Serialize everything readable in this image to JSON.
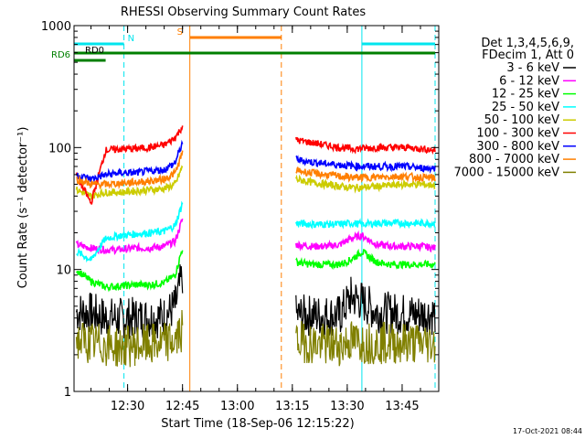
{
  "chart_data": {
    "type": "line",
    "title": "RHESSI Observing Summary Count Rates",
    "xlabel": "Start Time (18-Sep-06 12:15:22)",
    "ylabel": "Count Rate (s⁻¹ detector⁻¹)",
    "y_scale": "log",
    "ylim": [
      1,
      1000
    ],
    "xlim": [
      "12:15:22",
      "13:55"
    ],
    "x_ticks": [
      "12:30",
      "12:45",
      "13:00",
      "13:15",
      "13:30",
      "13:45"
    ],
    "y_ticks": [
      "1",
      "10",
      "100",
      "1000"
    ],
    "legend_header": [
      "Det 1,3,4,5,6,9,",
      "FDecim 1, Att 0"
    ],
    "legend_placement": "right",
    "timestamp": "17-Oct-2021 08:44",
    "gaps": [
      [
        "12:46",
        "13:14"
      ]
    ],
    "flags": [
      {
        "name": "N",
        "label": "N",
        "color": "#00e5ee",
        "intervals": [
          [
            "12:15:22",
            "12:29"
          ],
          [
            "13:34",
            "13:54"
          ]
        ]
      },
      {
        "name": "S",
        "label": "S",
        "color": "#ff7f00",
        "intervals": [
          [
            "12:47",
            "13:12"
          ]
        ]
      },
      {
        "name": "RD0",
        "label": "RD0",
        "color": "#007f00",
        "intervals": [
          [
            "12:15:22",
            "13:54"
          ]
        ]
      },
      {
        "name": "RD6",
        "label": "RD6",
        "color": "#007f00",
        "intervals": [
          [
            "12:15:22",
            "12:24"
          ]
        ]
      }
    ],
    "series": [
      {
        "name": "3 - 6 keV",
        "color": "#000000",
        "x": [
          "12:16",
          "12:20",
          "12:24",
          "12:28",
          "12:32",
          "12:36",
          "12:40",
          "12:43",
          "12:45",
          "13:16",
          "13:20",
          "13:24",
          "13:28",
          "13:31",
          "13:34",
          "13:38",
          "13:42",
          "13:46",
          "13:50",
          "13:54"
        ],
        "y": [
          4.5,
          4.4,
          4.0,
          4.0,
          4.0,
          4.0,
          4.1,
          5.0,
          9,
          4.2,
          4.2,
          4.2,
          4.2,
          6,
          5.5,
          4.5,
          4.4,
          4.3,
          4.3,
          4.3
        ]
      },
      {
        "name": "6 - 12 keV",
        "color": "#ff00ff",
        "x": [
          "12:16",
          "12:20",
          "12:24",
          "12:28",
          "12:32",
          "12:36",
          "12:40",
          "12:43",
          "12:45",
          "13:16",
          "13:20",
          "13:24",
          "13:28",
          "13:31",
          "13:34",
          "13:38",
          "13:42",
          "13:46",
          "13:50",
          "13:54"
        ],
        "y": [
          16,
          15,
          14.5,
          14.5,
          15,
          15,
          15.5,
          17,
          26,
          16,
          15.5,
          15.5,
          16,
          18,
          19,
          16,
          15.5,
          15.5,
          15.5,
          15
        ]
      },
      {
        "name": "12 - 25 keV",
        "color": "#00ff00",
        "x": [
          "12:16",
          "12:20",
          "12:24",
          "12:28",
          "12:32",
          "12:36",
          "12:40",
          "12:43",
          "12:45",
          "13:16",
          "13:20",
          "13:24",
          "13:28",
          "13:31",
          "13:34",
          "13:38",
          "13:42",
          "13:46",
          "13:50",
          "13:54"
        ],
        "y": [
          10,
          8,
          7.2,
          7.3,
          7.5,
          7.5,
          7.8,
          9,
          15,
          11.5,
          11,
          11,
          11,
          12,
          14,
          11.5,
          11,
          11,
          11,
          11
        ]
      },
      {
        "name": "25 - 50 keV",
        "color": "#00ffff",
        "x": [
          "12:16",
          "12:20",
          "12:24",
          "12:28",
          "12:32",
          "12:36",
          "12:40",
          "12:43",
          "12:45",
          "13:16",
          "13:20",
          "13:24",
          "13:28",
          "13:31",
          "13:34",
          "13:38",
          "13:42",
          "13:46",
          "13:50",
          "13:54"
        ],
        "y": [
          14,
          12,
          18,
          19,
          19.5,
          20,
          20.5,
          23,
          35,
          24,
          23.5,
          23.5,
          23.5,
          24,
          23.5,
          24,
          24,
          24,
          24,
          24
        ]
      },
      {
        "name": "50 - 100 keV",
        "color": "#cccc00",
        "x": [
          "12:16",
          "12:20",
          "12:24",
          "12:28",
          "12:32",
          "12:36",
          "12:40",
          "12:43",
          "12:45",
          "13:16",
          "13:20",
          "13:24",
          "13:28",
          "13:31",
          "13:34",
          "13:38",
          "13:42",
          "13:46",
          "13:50",
          "13:54"
        ],
        "y": [
          45,
          40,
          43,
          43,
          44,
          45,
          46,
          50,
          70,
          55,
          52,
          50,
          48,
          47,
          47,
          48,
          49,
          50,
          50,
          49
        ]
      },
      {
        "name": "100 - 300 keV",
        "color": "#ff0000",
        "x": [
          "12:16",
          "12:20",
          "12:24",
          "12:28",
          "12:32",
          "12:36",
          "12:40",
          "12:43",
          "12:45",
          "13:16",
          "13:20",
          "13:24",
          "13:28",
          "13:31",
          "13:34",
          "13:38",
          "13:42",
          "13:46",
          "13:50",
          "13:54"
        ],
        "y": [
          60,
          35,
          95,
          97,
          98,
          100,
          105,
          120,
          150,
          115,
          110,
          105,
          100,
          98,
          98,
          100,
          100,
          100,
          98,
          95
        ]
      },
      {
        "name": "300 - 800 keV",
        "color": "#0000ff",
        "x": [
          "12:16",
          "12:20",
          "12:24",
          "12:28",
          "12:32",
          "12:36",
          "12:40",
          "12:43",
          "12:45",
          "13:16",
          "13:20",
          "13:24",
          "13:28",
          "13:31",
          "13:34",
          "13:38",
          "13:42",
          "13:46",
          "13:50",
          "13:54"
        ],
        "y": [
          60,
          55,
          60,
          62,
          62,
          64,
          66,
          75,
          110,
          80,
          76,
          74,
          72,
          71,
          70,
          70,
          70,
          70,
          68,
          68
        ]
      },
      {
        "name": "800 - 7000 keV",
        "color": "#ff7f00",
        "x": [
          "12:16",
          "12:20",
          "12:24",
          "12:28",
          "12:32",
          "12:36",
          "12:40",
          "12:43",
          "12:45",
          "13:16",
          "13:20",
          "13:24",
          "13:28",
          "13:31",
          "13:34",
          "13:38",
          "13:42",
          "13:46",
          "13:50",
          "13:54"
        ],
        "y": [
          55,
          50,
          50,
          51,
          52,
          53,
          55,
          62,
          90,
          65,
          62,
          60,
          58,
          57,
          57,
          57,
          58,
          58,
          57,
          56
        ]
      },
      {
        "name": "7000 - 15000 keV",
        "color": "#808000",
        "x": [
          "12:16",
          "12:20",
          "12:24",
          "12:28",
          "12:32",
          "12:36",
          "12:40",
          "12:43",
          "12:45",
          "13:16",
          "13:20",
          "13:24",
          "13:28",
          "13:31",
          "13:34",
          "13:38",
          "13:42",
          "13:46",
          "13:50",
          "13:54"
        ],
        "y": [
          2.6,
          2.5,
          2.4,
          2.3,
          2.4,
          2.4,
          2.5,
          2.6,
          3.2,
          2.6,
          2.5,
          2.4,
          2.4,
          2.6,
          2.5,
          2.5,
          2.5,
          2.5,
          2.5,
          2.5
        ]
      }
    ]
  }
}
